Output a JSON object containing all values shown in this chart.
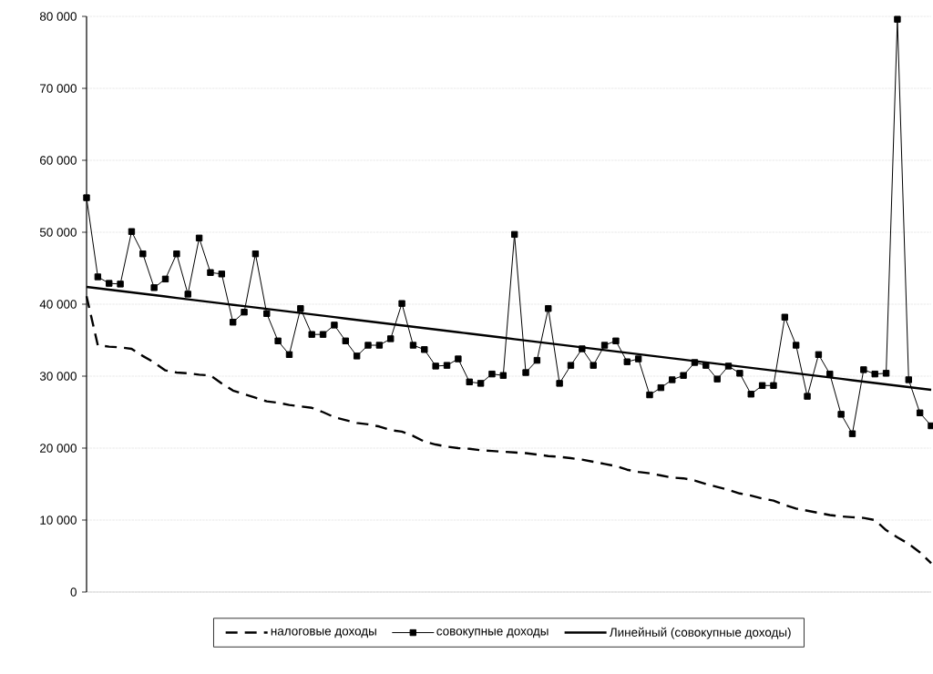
{
  "chart_data": {
    "type": "line",
    "categories": [
      null,
      null,
      null,
      null,
      null,
      null,
      null,
      null,
      null,
      null,
      null,
      null,
      null,
      null,
      null,
      null,
      null,
      null,
      null,
      null,
      null,
      null,
      null,
      null,
      null,
      null,
      null,
      null,
      null,
      null,
      null,
      null,
      null,
      null,
      null,
      null,
      null,
      null,
      null,
      null,
      null,
      null,
      null,
      null,
      null,
      null,
      null,
      null,
      null,
      null,
      null,
      null,
      null,
      null,
      null,
      null,
      null,
      null,
      null,
      null,
      null,
      null,
      null,
      null,
      null,
      null,
      null,
      null,
      null,
      null,
      null,
      null,
      null,
      null,
      null,
      null
    ],
    "series": [
      {
        "name": "налоговые доходы",
        "color": "#000000",
        "line_style": "dashed",
        "marker": "none",
        "values": [
          41100,
          34300,
          34100,
          34000,
          33800,
          32800,
          31900,
          30800,
          30500,
          30400,
          30200,
          30100,
          29000,
          28000,
          27500,
          27000,
          26500,
          26300,
          26000,
          25800,
          25600,
          25000,
          24300,
          23900,
          23500,
          23300,
          23000,
          22500,
          22300,
          21700,
          20900,
          20500,
          20200,
          20000,
          19900,
          19700,
          19600,
          19500,
          19400,
          19300,
          19100,
          18900,
          18800,
          18600,
          18400,
          18100,
          17800,
          17500,
          17000,
          16700,
          16500,
          16200,
          15900,
          15800,
          15500,
          15000,
          14600,
          14200,
          13700,
          13400,
          13000,
          12700,
          12100,
          11600,
          11300,
          11000,
          10700,
          10500,
          10400,
          10300,
          10000,
          8600,
          7600,
          6700,
          5500,
          4000
        ]
      },
      {
        "name": "совокупные доходы",
        "color": "#000000",
        "line_style": "solid",
        "marker": "square",
        "values": [
          54800,
          43800,
          42900,
          42800,
          50100,
          47000,
          42300,
          43500,
          47000,
          41400,
          49200,
          44400,
          44200,
          37500,
          38900,
          47000,
          38700,
          34900,
          33000,
          39400,
          35800,
          35800,
          37100,
          34900,
          32800,
          34300,
          34300,
          35200,
          40100,
          34300,
          33700,
          31400,
          31500,
          32400,
          29200,
          29000,
          30300,
          30100,
          49700,
          30500,
          32200,
          39400,
          29000,
          31500,
          33800,
          31500,
          34300,
          34900,
          32000,
          32400,
          27400,
          28400,
          29500,
          30100,
          31900,
          31500,
          29600,
          31400,
          30400,
          27500,
          28700,
          28700,
          38200,
          34300,
          27200,
          33000,
          30300,
          24700,
          22000,
          30900,
          30300,
          30400,
          79600,
          29500,
          24900,
          23100
        ]
      },
      {
        "name": "Линейный (совокупные доходы)",
        "color": "#000000",
        "line_style": "solid",
        "marker": "none",
        "values": [
          42400,
          42210,
          42020,
          41830,
          41640,
          41450,
          41260,
          41070,
          40870,
          40680,
          40490,
          40300,
          40110,
          39920,
          39730,
          39540,
          39350,
          39160,
          38970,
          38780,
          38590,
          38400,
          38210,
          38010,
          37820,
          37630,
          37440,
          37250,
          37060,
          36870,
          36680,
          36490,
          36300,
          36110,
          35920,
          35730,
          35540,
          35350,
          35150,
          34960,
          34770,
          34580,
          34390,
          34200,
          34010,
          33820,
          33630,
          33440,
          33250,
          33060,
          32870,
          32680,
          32490,
          32290,
          32100,
          31910,
          31720,
          31530,
          31340,
          31150,
          30960,
          30770,
          30580,
          30390,
          30200,
          30010,
          29820,
          29630,
          29430,
          29240,
          29050,
          28860,
          28670,
          28480,
          28290,
          28100
        ]
      }
    ],
    "ylim": [
      0,
      80000
    ],
    "yticks": [
      0,
      {
        "value": 10000,
        "label": "10 000"
      },
      {
        "value": 20000,
        "label": "20 000"
      },
      {
        "value": 30000,
        "label": "30 000"
      },
      {
        "value": 40000,
        "label": "40 000"
      },
      {
        "value": 50000,
        "label": "50 000"
      },
      {
        "value": 60000,
        "label": "60 000"
      },
      {
        "value": 70000,
        "label": "70 000"
      },
      {
        "value": 80000,
        "label": "80 000"
      }
    ],
    "grid": "y",
    "legend": "bottom",
    "tick_labels": "y"
  }
}
